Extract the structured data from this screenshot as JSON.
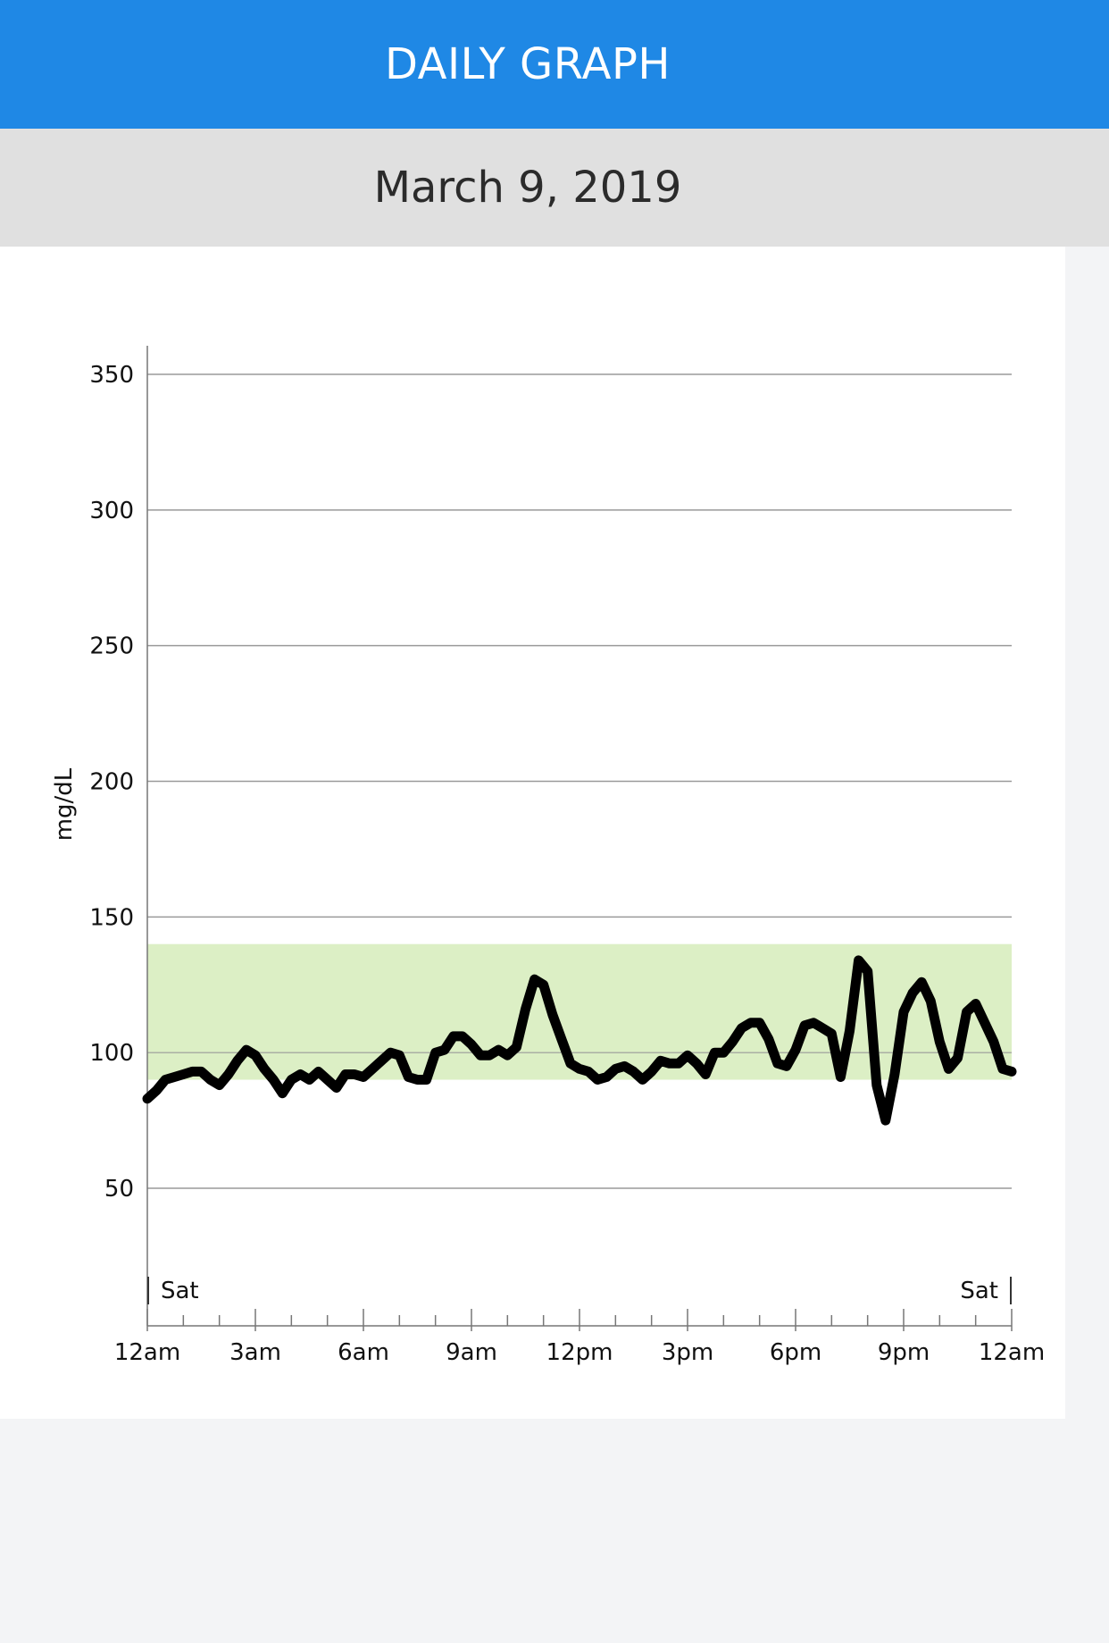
{
  "header": {
    "title": "DAILY GRAPH"
  },
  "date_bar": {
    "date": "March 9, 2019"
  },
  "colors": {
    "header_bg": "#1f88e5",
    "target_range": "#dcefc5",
    "line": "#000000",
    "grid": "#9a9a9a"
  },
  "chart_data": {
    "type": "line",
    "ylabel": "mg/dL",
    "y_ticks": [
      50,
      100,
      150,
      200,
      250,
      300,
      350
    ],
    "ylim": [
      0,
      360
    ],
    "x_ticks": [
      "12am",
      "3am",
      "6am",
      "9am",
      "12pm",
      "3pm",
      "6pm",
      "9pm",
      "12am"
    ],
    "x_range_hours": [
      0,
      24
    ],
    "day_labels": {
      "start": "Sat",
      "end": "Sat"
    },
    "target_range": [
      90,
      140
    ],
    "grid": true,
    "series": [
      {
        "x": [
          0.0,
          0.25,
          0.5,
          0.75,
          1.0,
          1.25,
          1.5,
          1.75,
          2.0,
          2.25,
          2.5,
          2.75,
          3.0,
          3.25,
          3.5,
          3.75,
          4.0,
          4.25,
          4.5,
          4.75,
          5.0,
          5.25,
          5.5,
          5.75,
          6.0,
          6.25,
          6.5,
          6.75,
          7.0,
          7.25,
          7.5,
          7.75,
          8.0,
          8.25,
          8.5,
          8.75,
          9.0,
          9.25,
          9.5,
          9.75,
          10.0,
          10.25,
          10.5,
          10.75,
          11.0,
          11.25,
          11.5,
          11.75,
          12.0,
          12.25,
          12.5,
          12.75,
          13.0,
          13.25,
          13.5,
          13.75,
          14.0,
          14.25,
          14.5,
          14.75,
          15.0,
          15.25,
          15.5,
          15.75,
          16.0,
          16.25,
          16.5,
          16.75,
          17.0,
          17.25,
          17.5,
          17.75,
          18.0,
          18.25,
          18.5,
          18.75,
          19.0,
          19.25,
          19.5,
          19.75,
          20.0,
          20.25,
          20.5,
          20.75,
          21.0,
          21.25,
          21.5,
          21.75,
          22.0,
          22.25,
          22.5,
          22.75,
          23.0,
          23.25,
          23.5,
          23.75,
          24.0
        ],
        "values": [
          83,
          86,
          90,
          91,
          92,
          93,
          93,
          90,
          88,
          92,
          97,
          101,
          99,
          94,
          90,
          85,
          90,
          92,
          90,
          93,
          90,
          87,
          92,
          92,
          91,
          94,
          97,
          100,
          99,
          91,
          90,
          90,
          100,
          101,
          106,
          106,
          103,
          99,
          99,
          101,
          99,
          102,
          116,
          127,
          125,
          114,
          105,
          96,
          94,
          93,
          90,
          91,
          94,
          95,
          93,
          90,
          93,
          97,
          96,
          96,
          99,
          96,
          92,
          100,
          100,
          104,
          109,
          111,
          111,
          105,
          96,
          95,
          101,
          110,
          111,
          109,
          107,
          91,
          108,
          134,
          130,
          88,
          75,
          92,
          115,
          122,
          126,
          119,
          104,
          94,
          98,
          115,
          118,
          111,
          104,
          94,
          93
        ]
      }
    ]
  }
}
